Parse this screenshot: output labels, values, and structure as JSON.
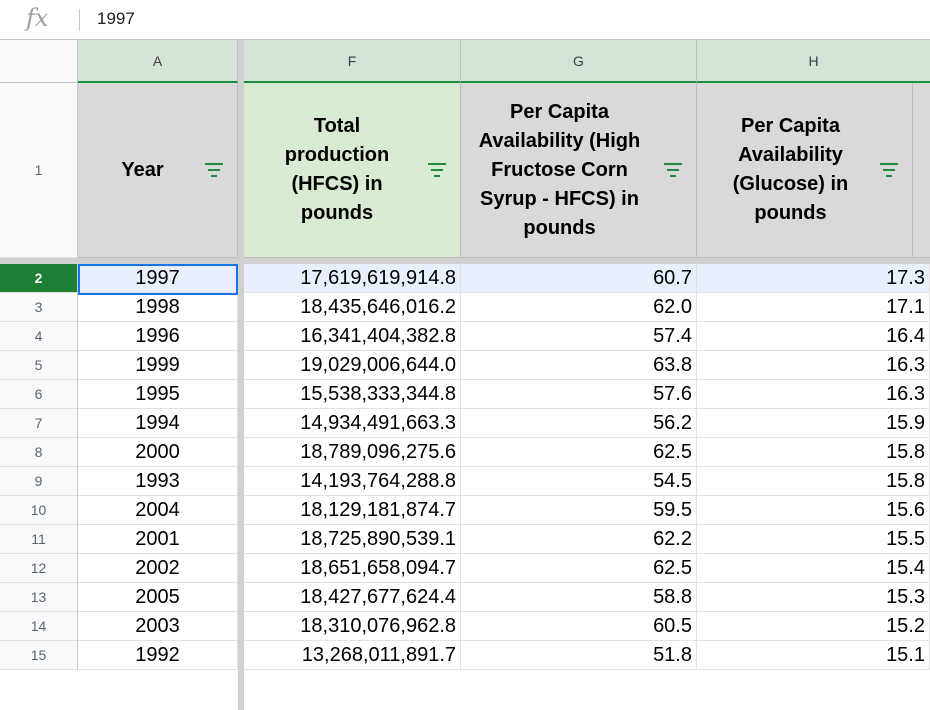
{
  "formula_bar": {
    "fx_label": "fx",
    "value": "1997"
  },
  "columns": [
    {
      "letter": "A",
      "header": "Year"
    },
    {
      "letter": "F",
      "header": "Total production (HFCS) in pounds"
    },
    {
      "letter": "G",
      "header": "Per Capita Availability (High Fructose Corn Syrup - HFCS) in pounds"
    },
    {
      "letter": "H",
      "header": "Per Capita Availability (Glucose) in pounds"
    }
  ],
  "header_row_number": "1",
  "rows": [
    {
      "n": "2",
      "year": "1997",
      "total": "17,619,619,914.8",
      "hfcs": "60.7",
      "glucose": "17.3"
    },
    {
      "n": "3",
      "year": "1998",
      "total": "18,435,646,016.2",
      "hfcs": "62.0",
      "glucose": "17.1"
    },
    {
      "n": "4",
      "year": "1996",
      "total": "16,341,404,382.8",
      "hfcs": "57.4",
      "glucose": "16.4"
    },
    {
      "n": "5",
      "year": "1999",
      "total": "19,029,006,644.0",
      "hfcs": "63.8",
      "glucose": "16.3"
    },
    {
      "n": "6",
      "year": "1995",
      "total": "15,538,333,344.8",
      "hfcs": "57.6",
      "glucose": "16.3"
    },
    {
      "n": "7",
      "year": "1994",
      "total": "14,934,491,663.3",
      "hfcs": "56.2",
      "glucose": "15.9"
    },
    {
      "n": "8",
      "year": "2000",
      "total": "18,789,096,275.6",
      "hfcs": "62.5",
      "glucose": "15.8"
    },
    {
      "n": "9",
      "year": "1993",
      "total": "14,193,764,288.8",
      "hfcs": "54.5",
      "glucose": "15.8"
    },
    {
      "n": "10",
      "year": "2004",
      "total": "18,129,181,874.7",
      "hfcs": "59.5",
      "glucose": "15.6"
    },
    {
      "n": "11",
      "year": "2001",
      "total": "18,725,890,539.1",
      "hfcs": "62.2",
      "glucose": "15.5"
    },
    {
      "n": "12",
      "year": "2002",
      "total": "18,651,658,094.7",
      "hfcs": "62.5",
      "glucose": "15.4"
    },
    {
      "n": "13",
      "year": "2005",
      "total": "18,427,677,624.4",
      "hfcs": "58.8",
      "glucose": "15.3"
    },
    {
      "n": "14",
      "year": "2003",
      "total": "18,310,076,962.8",
      "hfcs": "60.5",
      "glucose": "15.2"
    },
    {
      "n": "15",
      "year": "1992",
      "total": "13,268,011,891.7",
      "hfcs": "51.8",
      "glucose": "15.1"
    }
  ],
  "selected_row": "2",
  "colors": {
    "accent_green": "#1e8e3e",
    "selection_blue": "#1a73e8"
  }
}
